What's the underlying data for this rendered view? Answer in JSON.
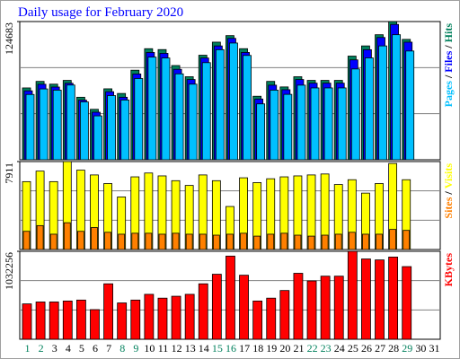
{
  "chart_data": [
    {
      "type": "bar",
      "title": "Daily usage for February 2020",
      "title_color": "#0000ff",
      "ylim": [
        0,
        124683
      ],
      "yticks": [
        124683
      ],
      "grid": true,
      "legend_separator": "/",
      "series": [
        {
          "name": "Hits",
          "color": "#00805c",
          "values": [
            64800,
            70700,
            68200,
            71600,
            56400,
            45500,
            64000,
            59800,
            80800,
            100200,
            99400,
            85000,
            74900,
            94300,
            106100,
            112000,
            100200,
            57300,
            70700,
            65700,
            74900,
            71600,
            71600,
            71600,
            93500,
            102700,
            112800,
            124683,
            108600,
            null,
            null
          ]
        },
        {
          "name": "Files",
          "color": "#0000ff",
          "values": [
            62200,
            68100,
            65600,
            69000,
            53800,
            42900,
            61400,
            56400,
            77400,
            96800,
            96000,
            81600,
            72400,
            91800,
            102700,
            109500,
            96800,
            54800,
            67300,
            63200,
            72400,
            69100,
            69100,
            69100,
            90100,
            99300,
            110300,
            122100,
            106100,
            null,
            null
          ]
        },
        {
          "name": "Pages",
          "color": "#00c0ff",
          "values": [
            58900,
            63900,
            62800,
            67400,
            52200,
            39600,
            57900,
            53900,
            73300,
            92600,
            91800,
            77500,
            68200,
            87600,
            99300,
            105300,
            94100,
            50400,
            62800,
            59000,
            67300,
            64800,
            64800,
            64800,
            81900,
            91900,
            102700,
            112800,
            98100,
            null,
            null
          ]
        }
      ]
    },
    {
      "type": "bar",
      "ylim": [
        0,
        7911
      ],
      "yticks": [
        7911
      ],
      "grid": true,
      "legend_separator": "/",
      "series": [
        {
          "name": "Visits",
          "color": "#ffff00",
          "values": [
            6106,
            7052,
            6106,
            7911,
            7138,
            6708,
            5934,
            4730,
            6536,
            6880,
            6622,
            6192,
            5762,
            6708,
            6192,
            3870,
            6450,
            6020,
            6364,
            6536,
            6622,
            6708,
            6794,
            5848,
            6278,
            5074,
            5934,
            7740,
            6278,
            null,
            null
          ]
        },
        {
          "name": "Sites",
          "color": "#ff8000",
          "values": [
            1634,
            2150,
            1376,
            2408,
            1634,
            1978,
            1548,
            1376,
            1462,
            1462,
            1376,
            1462,
            1376,
            1376,
            1290,
            1376,
            1462,
            1204,
            1376,
            1462,
            1290,
            1204,
            1290,
            1376,
            1548,
            1376,
            1376,
            1806,
            1720,
            null,
            null
          ]
        }
      ]
    },
    {
      "type": "bar",
      "ylim": [
        0,
        1032256
      ],
      "yticks": [
        1032256
      ],
      "grid": true,
      "categories": [
        "1",
        "2",
        "3",
        "4",
        "5",
        "6",
        "7",
        "8",
        "9",
        "10",
        "11",
        "12",
        "13",
        "14",
        "15",
        "16",
        "17",
        "18",
        "19",
        "20",
        "21",
        "22",
        "23",
        "24",
        "25",
        "26",
        "27",
        "28",
        "29",
        "30",
        "31"
      ],
      "weekend": [
        true,
        true,
        false,
        false,
        false,
        false,
        false,
        true,
        true,
        false,
        false,
        false,
        false,
        false,
        true,
        true,
        false,
        false,
        false,
        false,
        false,
        true,
        true,
        false,
        false,
        false,
        false,
        false,
        true,
        false,
        false
      ],
      "label_color": "#000000",
      "weekend_color": "#00805c",
      "series": [
        {
          "name": "KBytes",
          "color": "#ff0000",
          "values": [
            415000,
            437600,
            437600,
            448800,
            460000,
            347800,
            650800,
            426400,
            460000,
            527300,
            482500,
            504900,
            527300,
            650800,
            763000,
            976100,
            751700,
            448800,
            482500,
            572200,
            774200,
            684400,
            740500,
            740500,
            1032256,
            942500,
            931300,
            964900,
            852700,
            null,
            null
          ]
        }
      ]
    }
  ]
}
